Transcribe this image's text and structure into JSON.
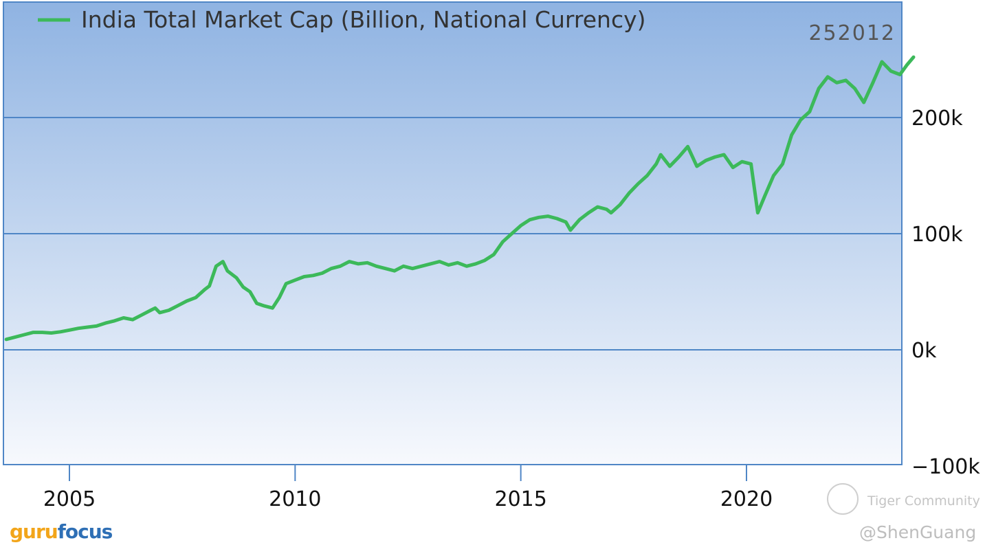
{
  "chart_data": {
    "type": "line",
    "title": "",
    "legend": {
      "label": "India Total Market Cap (Billion, National Currency)",
      "placement": "top-left"
    },
    "series": [
      {
        "name": "India Total Market Cap (Billion, National Currency)",
        "color": "#3cb95a",
        "points": [
          [
            2003.6,
            9000
          ],
          [
            2003.8,
            11000
          ],
          [
            2004.0,
            13000
          ],
          [
            2004.2,
            15000
          ],
          [
            2004.4,
            15000
          ],
          [
            2004.6,
            14500
          ],
          [
            2004.8,
            15500
          ],
          [
            2005.0,
            17000
          ],
          [
            2005.2,
            18500
          ],
          [
            2005.4,
            19500
          ],
          [
            2005.6,
            20500
          ],
          [
            2005.8,
            23000
          ],
          [
            2006.0,
            25000
          ],
          [
            2006.2,
            27500
          ],
          [
            2006.4,
            26000
          ],
          [
            2006.6,
            30000
          ],
          [
            2006.8,
            34000
          ],
          [
            2006.9,
            36000
          ],
          [
            2007.0,
            32000
          ],
          [
            2007.2,
            34000
          ],
          [
            2007.4,
            38000
          ],
          [
            2007.6,
            42000
          ],
          [
            2007.8,
            45000
          ],
          [
            2008.0,
            52000
          ],
          [
            2008.1,
            55000
          ],
          [
            2008.25,
            72000
          ],
          [
            2008.4,
            76000
          ],
          [
            2008.5,
            68000
          ],
          [
            2008.7,
            62000
          ],
          [
            2008.85,
            54000
          ],
          [
            2009.0,
            50000
          ],
          [
            2009.15,
            40000
          ],
          [
            2009.3,
            38000
          ],
          [
            2009.5,
            36000
          ],
          [
            2009.65,
            45000
          ],
          [
            2009.8,
            57000
          ],
          [
            2010.0,
            60000
          ],
          [
            2010.2,
            63000
          ],
          [
            2010.4,
            64000
          ],
          [
            2010.6,
            66000
          ],
          [
            2010.8,
            70000
          ],
          [
            2011.0,
            72000
          ],
          [
            2011.2,
            76000
          ],
          [
            2011.4,
            74000
          ],
          [
            2011.6,
            75000
          ],
          [
            2011.8,
            72000
          ],
          [
            2012.0,
            70000
          ],
          [
            2012.2,
            68000
          ],
          [
            2012.4,
            72000
          ],
          [
            2012.6,
            70000
          ],
          [
            2012.8,
            72000
          ],
          [
            2013.0,
            74000
          ],
          [
            2013.2,
            76000
          ],
          [
            2013.4,
            73000
          ],
          [
            2013.6,
            75000
          ],
          [
            2013.8,
            72000
          ],
          [
            2014.0,
            74000
          ],
          [
            2014.2,
            77000
          ],
          [
            2014.4,
            82000
          ],
          [
            2014.6,
            93000
          ],
          [
            2014.8,
            100000
          ],
          [
            2015.0,
            107000
          ],
          [
            2015.2,
            112000
          ],
          [
            2015.4,
            114000
          ],
          [
            2015.6,
            115000
          ],
          [
            2015.8,
            113000
          ],
          [
            2016.0,
            110000
          ],
          [
            2016.1,
            103000
          ],
          [
            2016.3,
            112000
          ],
          [
            2016.5,
            118000
          ],
          [
            2016.7,
            123000
          ],
          [
            2016.9,
            121000
          ],
          [
            2017.0,
            118000
          ],
          [
            2017.2,
            125000
          ],
          [
            2017.4,
            135000
          ],
          [
            2017.6,
            143000
          ],
          [
            2017.8,
            150000
          ],
          [
            2018.0,
            160000
          ],
          [
            2018.1,
            168000
          ],
          [
            2018.3,
            158000
          ],
          [
            2018.5,
            166000
          ],
          [
            2018.7,
            175000
          ],
          [
            2018.9,
            158000
          ],
          [
            2019.1,
            163000
          ],
          [
            2019.3,
            166000
          ],
          [
            2019.5,
            168000
          ],
          [
            2019.7,
            157000
          ],
          [
            2019.9,
            162000
          ],
          [
            2020.1,
            160000
          ],
          [
            2020.25,
            118000
          ],
          [
            2020.4,
            132000
          ],
          [
            2020.6,
            150000
          ],
          [
            2020.8,
            160000
          ],
          [
            2021.0,
            185000
          ],
          [
            2021.2,
            198000
          ],
          [
            2021.4,
            205000
          ],
          [
            2021.6,
            225000
          ],
          [
            2021.8,
            235000
          ],
          [
            2022.0,
            230000
          ],
          [
            2022.2,
            232000
          ],
          [
            2022.4,
            225000
          ],
          [
            2022.6,
            213000
          ],
          [
            2022.8,
            230000
          ],
          [
            2023.0,
            248000
          ],
          [
            2023.2,
            240000
          ],
          [
            2023.4,
            237000
          ],
          [
            2023.55,
            245000
          ],
          [
            2023.7,
            252012
          ]
        ]
      }
    ],
    "last_value_label": "252012",
    "xlim": [
      2003.6,
      2023.7
    ],
    "ylim": [
      -100000,
      300000
    ],
    "x_ticks": [
      {
        "value": 2005,
        "label": "2005"
      },
      {
        "value": 2010,
        "label": "2010"
      },
      {
        "value": 2015,
        "label": "2015"
      },
      {
        "value": 2020,
        "label": "2020"
      }
    ],
    "y_ticks": [
      {
        "value": 200000,
        "label": "200k"
      },
      {
        "value": 100000,
        "label": "100k"
      },
      {
        "value": 0,
        "label": "0k"
      },
      {
        "value": -100000,
        "label": "−100k"
      }
    ],
    "grid": "horizontal",
    "colors": {
      "line": "#3cb95a",
      "grid": "#4f86c6",
      "bg_top": "#8fb3e2",
      "bg_bottom": "#f7f9fd"
    }
  },
  "branding": {
    "logo_part1": "guru",
    "logo_part2": "focus"
  },
  "watermark": {
    "community": "Tiger Community",
    "handle": "@ShenGuang"
  }
}
